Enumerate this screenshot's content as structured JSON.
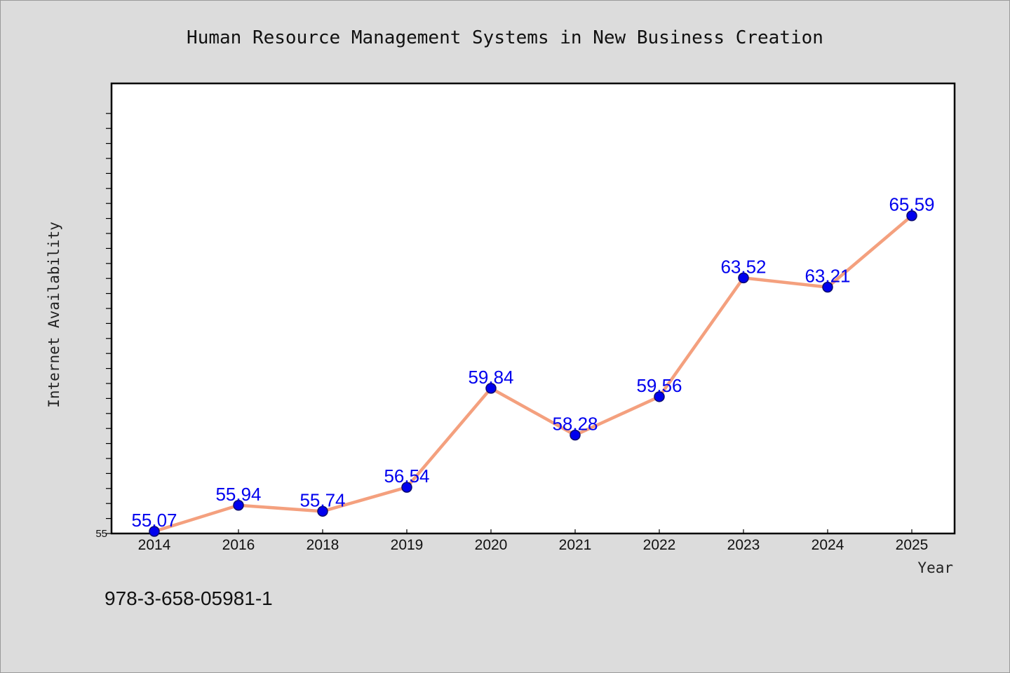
{
  "chart_data": {
    "type": "line",
    "title": "Human Resource Management Systems in New Business Creation",
    "xlabel": "Year",
    "ylabel": "Internet Availability",
    "categories": [
      "2014",
      "2016",
      "2018",
      "2019",
      "2020",
      "2021",
      "2022",
      "2023",
      "2024",
      "2025"
    ],
    "series": [
      {
        "values": [
          55.07,
          55.94,
          55.74,
          56.54,
          59.84,
          58.28,
          59.56,
          63.52,
          63.21,
          65.59
        ]
      }
    ],
    "data_labels": [
      "55.07",
      "55.94",
      "55.74",
      "56.54",
      "59.84",
      "58.28",
      "59.56",
      "63.52",
      "63.21",
      "65.59"
    ],
    "ylim": [
      55,
      70
    ],
    "yticks_labeled": [
      "55"
    ],
    "grid": false,
    "legend": "none",
    "colors": {
      "line": "#f4a07e",
      "marker": "#0000ee",
      "marker_edge": "#0a0a6e",
      "data_label": "#0000ee",
      "page_background": "#dcdcdc",
      "plot_background": "#ffffff",
      "frame": "#000000"
    }
  },
  "footer": {
    "isbn": "978-3-658-05981-1"
  }
}
